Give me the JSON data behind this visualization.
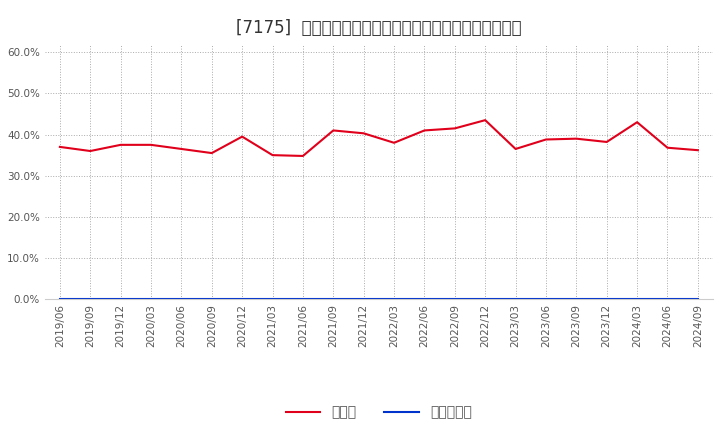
{
  "title": "[7175]  現頃金、有利子負債の総資産に対する比率の推移",
  "cash_dates": [
    "2019/06",
    "2019/09",
    "2019/12",
    "2020/03",
    "2020/06",
    "2020/09",
    "2020/12",
    "2021/03",
    "2021/06",
    "2021/09",
    "2021/12",
    "2022/03",
    "2022/06",
    "2022/09",
    "2022/12",
    "2023/03",
    "2023/06",
    "2023/09",
    "2023/12",
    "2024/03",
    "2024/06",
    "2024/09"
  ],
  "cash_values": [
    0.37,
    0.36,
    0.375,
    0.375,
    0.365,
    0.355,
    0.395,
    0.35,
    0.348,
    0.41,
    0.403,
    0.38,
    0.41,
    0.415,
    0.435,
    0.365,
    0.388,
    0.39,
    0.382,
    0.43,
    0.368,
    0.362
  ],
  "debt_values": [
    0.0,
    0.0,
    0.0,
    0.0,
    0.0,
    0.0,
    0.0,
    0.0,
    0.0,
    0.0,
    0.0,
    0.0,
    0.0,
    0.0,
    0.0,
    0.0,
    0.0,
    0.0,
    0.0,
    0.0,
    0.0,
    0.0
  ],
  "cash_color": "#e0001b",
  "debt_color": "#0033cc",
  "background_color": "#ffffff",
  "grid_color": "#aaaaaa",
  "ylim": [
    0.0,
    0.62
  ],
  "yticks": [
    0.0,
    0.1,
    0.2,
    0.3,
    0.4,
    0.5,
    0.6
  ],
  "legend_cash": "現頃金",
  "legend_debt": "有利子負債",
  "title_fontsize": 12,
  "tick_fontsize": 7.5,
  "legend_fontsize": 10
}
